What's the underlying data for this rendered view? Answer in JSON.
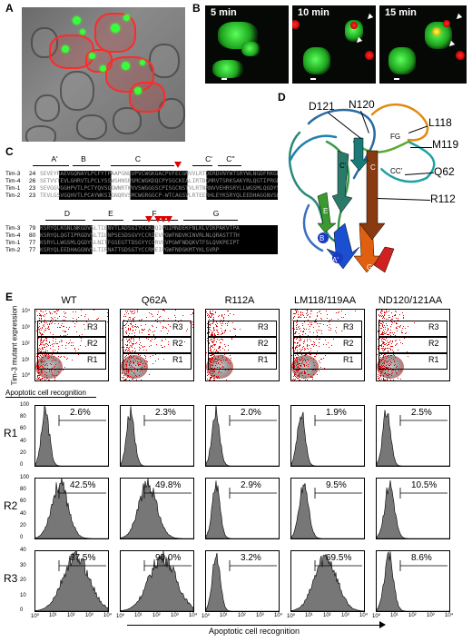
{
  "panels": {
    "a": "A",
    "b": "B",
    "c": "C",
    "d": "D",
    "e": "E"
  },
  "panel_b": {
    "timepoints": [
      "5 min",
      "10 min",
      "15 min"
    ]
  },
  "panel_c": {
    "strands_top": [
      "A'",
      "B",
      "C",
      "C'",
      "C''"
    ],
    "strands_bottom": [
      "D",
      "E",
      "F",
      "G"
    ],
    "rows_top": [
      {
        "name": "Tim-3",
        "start": "24"
      },
      {
        "name": "Tim-4",
        "start": "26"
      },
      {
        "name": "Tim-1",
        "start": "23"
      },
      {
        "name": "Tim-2",
        "start": "23"
      }
    ],
    "rows_bottom": [
      {
        "name": "Tim-3",
        "start": "79"
      },
      {
        "name": "Tim-4",
        "start": "80"
      },
      {
        "name": "Tim-1",
        "start": "77"
      },
      {
        "name": "Tim-2",
        "start": "77"
      }
    ],
    "seq_top": [
      "SEVEYRAEVGQNAYLPCFYTPAAPGNLVPVCWGKGACPVFECGNVVLRTDERDVNYWTSRYWLNGDFRKGDVSLTIENVTLADSGIYCCRIQI",
      "SETVVTEVLGHRVTLPCLYSSWSHNSNSMCWGKDQCPYSGCKEALIRTDGMRVTSRKSAKYRLQGTIPRGDVSLTILNPSESDSGVYCCRIEV",
      "SEVGGVGGHPVTLPCTYQVSQGWNRTWVVSWGGGSCPISGCNSTVLRTNRNVVEHRSRYLLWGSMLQGDYSLNITFGSEGTTDSGYYCCRVEE",
      "TEVLGSVGQHVTLPCAYWKSIGNQRVSMCWGRGGCP-WTCAGSVLRTEERHLEYKSRYQLEEDHAGGNVSLTIRNATTGDSGTYCCRMEI"
    ],
    "seq_bottom": [
      "KSRYQLKGNLNKGDVSLTIENVTLADSGIYCCRIQIPGIMNDEKFNLKLVIKPAKVTPA",
      "KSRYQLQGTIPRGDVSLTILNPSESDSGVYCCRIEVPGWFNDVKINVRLNLQRASTTTH",
      "KSRYLLWGSMLQGDYSLNITFGSEGTTDSGYYCCRVEVPGWFNDQKVTFSLQVKPEIPT",
      "KSRYQLEEDHAGGNVSLTIRNATTGDSGTYCCRMEIPGWFNDGKMTYKLSVRP"
    ]
  },
  "panel_d": {
    "labels": [
      "D121",
      "N120",
      "L118",
      "M119",
      "Q62",
      "R112",
      "FG",
      "CC'",
      "A'",
      "B",
      "C",
      "C'",
      "F",
      "G",
      "E"
    ]
  },
  "panel_e": {
    "columns": [
      "WT",
      "Q62A",
      "R112A",
      "LM118/119AA",
      "ND120/121AA"
    ],
    "gates": [
      "R3",
      "R2",
      "R1"
    ],
    "rows": [
      "R1",
      "R2",
      "R3"
    ],
    "y_label": "Tim-3 mutant expression",
    "x_label_top": "Apoptotic cell recognition",
    "x_label_bottom": "Apoptotic cell recognition",
    "y_ticks_dot": [
      "10⁴",
      "10³",
      "10²",
      "10¹",
      "10⁰"
    ],
    "x_ticks": [
      "10⁰",
      "10¹",
      "10²",
      "10³",
      "10⁴"
    ],
    "hist_y_ticks": {
      "R1": [
        "100",
        "80",
        "60",
        "40",
        "20",
        "0"
      ],
      "R2": [
        "100",
        "80",
        "60",
        "40",
        "20",
        "0"
      ],
      "R3": [
        "40",
        "30",
        "20",
        "10",
        "0"
      ]
    },
    "percentages": {
      "R1": [
        "2.6%",
        "2.3%",
        "2.0%",
        "1.9%",
        "2.5%"
      ],
      "R2": [
        "42.5%",
        "49.8%",
        "2.9%",
        "9.5%",
        "10.5%"
      ],
      "R3": [
        "87.5%",
        "90.0%",
        "3.2%",
        "69.5%",
        "8.6%"
      ]
    },
    "percent_values": {
      "R1": [
        2.6,
        2.3,
        2.0,
        1.9,
        2.5
      ],
      "R2": [
        42.5,
        49.8,
        2.9,
        9.5,
        10.5
      ],
      "R3": [
        87.5,
        90.0,
        3.2,
        69.5,
        8.6
      ]
    },
    "colors": {
      "dots": "#e00000",
      "density": "#9a9a9a",
      "hist_fill": "#777777"
    }
  }
}
